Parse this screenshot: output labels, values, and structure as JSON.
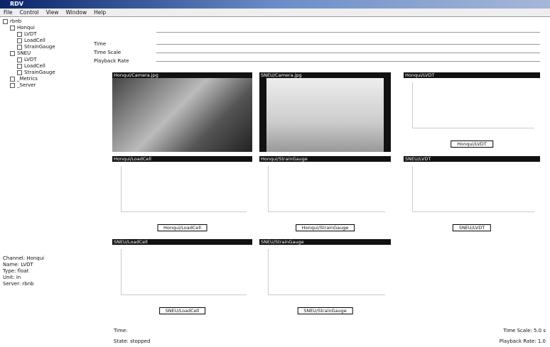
{
  "window": {
    "title": "RDV"
  },
  "menu": [
    "File",
    "Control",
    "View",
    "Window",
    "Help"
  ],
  "tree": {
    "label": "rbnb",
    "children": [
      {
        "label": "Honqui",
        "children": [
          {
            "label": "LVDT"
          },
          {
            "label": "LoadCell"
          },
          {
            "label": "StrainGauge"
          }
        ]
      },
      {
        "label": "SNEU",
        "children": [
          {
            "label": "LVDT"
          },
          {
            "label": "LoadCell"
          },
          {
            "label": "StrainGauge"
          }
        ]
      },
      {
        "label": "_Metrics"
      },
      {
        "label": "_Server"
      }
    ]
  },
  "controls": [
    "Time",
    "Time Scale",
    "Playback Rate"
  ],
  "panels": [
    {
      "title": "Honqui/Camera.jpg",
      "kind": "image"
    },
    {
      "title": "SNEU/Camera.jpg",
      "kind": "image"
    },
    {
      "title": "Honqui/LVDT",
      "kind": "chart",
      "legend": "Honqui/LVDT"
    },
    {
      "title": "Honqui/LoadCell",
      "kind": "chart",
      "legend": "Honqui/LoadCell"
    },
    {
      "title": "Honqui/StrainGauge",
      "kind": "chart",
      "legend": "Honqui/StrainGauge"
    },
    {
      "title": "SNEU/LVDT",
      "kind": "chart",
      "legend": "SNEU/LVDT"
    },
    {
      "title": "SNEU/LoadCell",
      "kind": "chart",
      "legend": "SNEU/LoadCell"
    },
    {
      "title": "SNEU/StrainGauge",
      "kind": "chart",
      "legend": "SNEU/StrainGauge"
    }
  ],
  "info": [
    "Channel: Honqui",
    "Name: LVDT",
    "Type: float",
    "Unit: in",
    "Server: rbnb"
  ],
  "status": {
    "time": "Time:",
    "state": "State: stopped",
    "time_scale": "Time Scale: 5.0 s",
    "playback_rate": "Playback Rate: 1.0"
  }
}
